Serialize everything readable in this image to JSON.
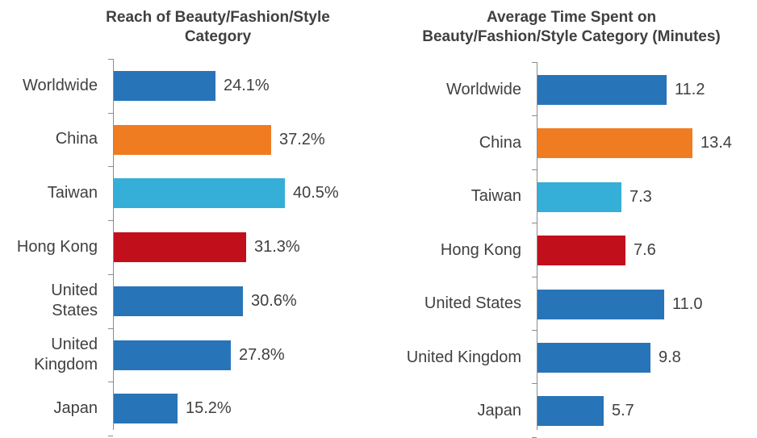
{
  "chart_data": [
    {
      "type": "bar",
      "orientation": "horizontal",
      "title": "Reach of Beauty/Fashion/Style Category",
      "title_lines": [
        "Reach of Beauty/Fashion/Style",
        "Category"
      ],
      "categories": [
        "Worldwide",
        "China",
        "Taiwan",
        "Hong Kong",
        "United States",
        "United Kingdom",
        "Japan"
      ],
      "category_lines": [
        [
          "Worldwide"
        ],
        [
          "China"
        ],
        [
          "Taiwan"
        ],
        [
          "Hong Kong"
        ],
        [
          "United",
          "States"
        ],
        [
          "United",
          "Kingdom"
        ],
        [
          "Japan"
        ]
      ],
      "values": [
        24.1,
        37.2,
        40.5,
        31.3,
        30.6,
        27.8,
        15.2
      ],
      "labels": [
        "24.1%",
        "37.2%",
        "40.5%",
        "31.3%",
        "30.6%",
        "27.8%",
        "15.2%"
      ],
      "colors": [
        "#2874b8",
        "#f07c22",
        "#35aed8",
        "#c20f1c",
        "#2874b8",
        "#2874b8",
        "#2874b8"
      ],
      "unit": "%",
      "xlabel": "",
      "ylabel": "",
      "grid": false,
      "legend": null
    },
    {
      "type": "bar",
      "orientation": "horizontal",
      "title": "Average Time Spent on Beauty/Fashion/Style Category (Minutes)",
      "title_lines": [
        "Average Time Spent on",
        "Beauty/Fashion/Style Category (Minutes)"
      ],
      "categories": [
        "Worldwide",
        "China",
        "Taiwan",
        "Hong Kong",
        "United States",
        "United Kingdom",
        "Japan"
      ],
      "category_lines": [
        [
          "Worldwide"
        ],
        [
          "China"
        ],
        [
          "Taiwan"
        ],
        [
          "Hong Kong"
        ],
        [
          "United States"
        ],
        [
          "United Kingdom"
        ],
        [
          "Japan"
        ]
      ],
      "values": [
        11.2,
        13.4,
        7.3,
        7.6,
        11.0,
        9.8,
        5.7
      ],
      "labels": [
        "11.2",
        "13.4",
        "7.3",
        "7.6",
        "11.0",
        "9.8",
        "5.7"
      ],
      "colors": [
        "#2874b8",
        "#f07c22",
        "#35aed8",
        "#c20f1c",
        "#2874b8",
        "#2874b8",
        "#2874b8"
      ],
      "unit": "minutes",
      "xlabel": "",
      "ylabel": "",
      "grid": false,
      "legend": null
    }
  ]
}
